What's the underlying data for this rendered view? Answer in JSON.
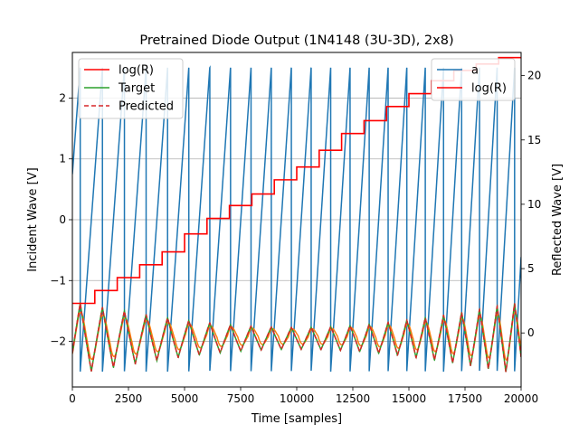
{
  "chart_data": {
    "type": "line",
    "title": "Pretrained Diode Output (1N4148 (3U-3D), 2x8)",
    "xlabel": "Time [samples]",
    "ylabel_left": "Incident Wave [V]",
    "ylabel_right": "Reflected Wave [V]",
    "xlim": [
      0,
      20000
    ],
    "ylim_left": [
      -2.75,
      2.75
    ],
    "ylim_right": [
      -4.2,
      21.8
    ],
    "x_ticks": [
      0,
      2500,
      5000,
      7500,
      10000,
      12500,
      15000,
      17500,
      20000
    ],
    "x_tick_labels": [
      "0",
      "2500",
      "5000",
      "7500",
      "10000",
      "12500",
      "15000",
      "17500",
      "20000"
    ],
    "y_ticks_left": [
      -2,
      -1,
      0,
      1,
      2
    ],
    "y_tick_labels_left": [
      "−2",
      "−1",
      "0",
      "1",
      "2"
    ],
    "y_ticks_right": [
      0,
      5,
      10,
      15,
      20
    ],
    "y_tick_labels_right": [
      "0",
      "5",
      "10",
      "15",
      "20"
    ],
    "grid": "horizontal lines at left-axis ticks",
    "series": [
      {
        "name": "a",
        "axis": "left",
        "color": "#1f77b4",
        "kind": "sawtooth",
        "amplitude": 2.5,
        "period_start": 1000,
        "period_end": 770,
        "phase_start": -0.35
      },
      {
        "name": "log(R)",
        "axis": "right",
        "color": "#ff0000",
        "kind": "step",
        "step_width": 1000,
        "values": [
          2.3,
          3.3,
          4.3,
          5.3,
          6.3,
          7.7,
          8.9,
          9.9,
          10.8,
          11.9,
          12.9,
          14.2,
          15.5,
          16.5,
          17.6,
          18.6,
          19.6,
          20.4,
          20.9,
          21.4
        ]
      },
      {
        "name": "Target",
        "axis": "left",
        "color": "#2ca02c",
        "kind": "sawtooth-abs",
        "description_amplitude_env": [
          0.55,
          0.55,
          0.45,
          0.35,
          0.25,
          0.2,
          0.18,
          0.2,
          0.3,
          0.45,
          0.6
        ]
      },
      {
        "name": "Predicted",
        "axis": "left",
        "color": "#d62728",
        "dashed": true
      },
      {
        "name": "",
        "axis": "left",
        "color": "#ff7f0e",
        "kind": "oscillation"
      }
    ],
    "legend_left": {
      "placement": "upper-left",
      "entries": [
        {
          "label": "log(R)",
          "color": "#ff0000",
          "dashed": false
        },
        {
          "label": "Target",
          "color": "#2ca02c",
          "dashed": false
        },
        {
          "label": "Predicted",
          "color": "#d62728",
          "dashed": true
        }
      ]
    },
    "legend_right": {
      "placement": "upper-right",
      "entries": [
        {
          "label": "a",
          "color": "#1f77b4",
          "dashed": false
        },
        {
          "label": "log(R)",
          "color": "#ff0000",
          "dashed": false
        }
      ]
    }
  }
}
